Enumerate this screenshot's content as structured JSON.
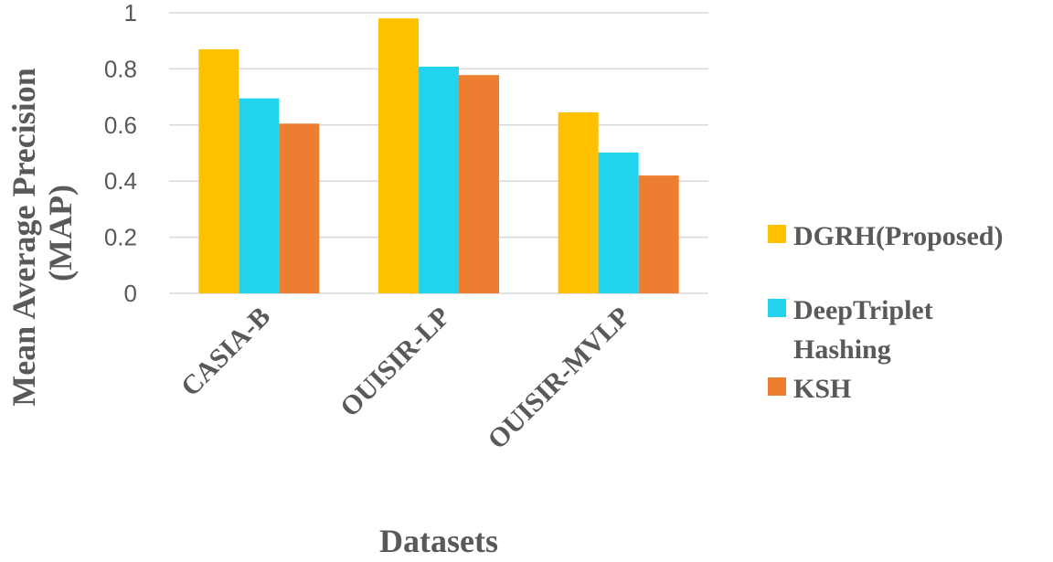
{
  "chart_data": {
    "type": "bar",
    "title": "",
    "xlabel": "Datasets",
    "ylabel_lines": [
      "Mean Average Precision",
      "(MAP)"
    ],
    "categories": [
      "CASIA-B",
      "OUISIR-LP",
      "OUISIR-MVLP"
    ],
    "series": [
      {
        "name": "DGRH(Proposed)",
        "name_lines": [
          "DGRH(Proposed)"
        ],
        "color": "#FFC000",
        "values": [
          0.87,
          0.98,
          0.645
        ]
      },
      {
        "name": "DeepTriplet Hashing",
        "name_lines": [
          "DeepTriplet",
          "Hashing"
        ],
        "color": "#22D3EE",
        "values": [
          0.695,
          0.808,
          0.502
        ]
      },
      {
        "name": "KSH",
        "name_lines": [
          "KSH"
        ],
        "color": "#ED7D31",
        "values": [
          0.605,
          0.778,
          0.42
        ]
      }
    ],
    "ylim": [
      0,
      1
    ],
    "yticks": [
      0,
      0.2,
      0.4,
      0.6,
      0.8,
      1
    ],
    "ytick_labels": [
      "0",
      "0.2",
      "0.4",
      "0.6",
      "0.8",
      "1"
    ],
    "grid": true,
    "legend_position": "right",
    "gridline_color": "#D9D9D9"
  }
}
